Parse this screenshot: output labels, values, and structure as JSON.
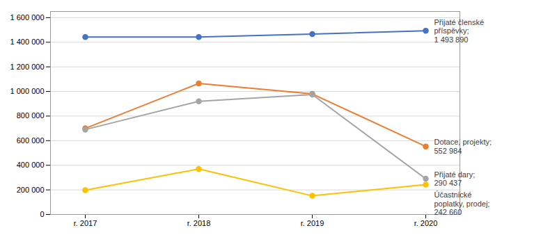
{
  "chart_data": {
    "type": "line",
    "categories": [
      "r. 2017",
      "r. 2018",
      "r. 2019",
      "r. 2020"
    ],
    "series": [
      {
        "name": "Přijaté členské\npříspěvky;\n1 493 890",
        "color": "#4472C4",
        "marker": "circle",
        "values": [
          1443000,
          1443000,
          1466000,
          1493890
        ]
      },
      {
        "name": "Dotace, projekty;\n552 984",
        "color": "#ED7D31",
        "marker": "circle",
        "values": [
          700000,
          1065000,
          980000,
          552984
        ]
      },
      {
        "name": "Přijaté dary;\n290 437",
        "color": "#A5A5A5",
        "marker": "circle",
        "values": [
          690000,
          920000,
          975000,
          290437
        ]
      },
      {
        "name": "Účastnické\npoplatky, prodej;\n242 660",
        "color": "#FFC000",
        "marker": "circle",
        "values": [
          198000,
          370000,
          152000,
          242660
        ]
      }
    ],
    "ylim": [
      0,
      1650000
    ],
    "yticks": [
      0,
      {
        "value": 200000,
        "label": "200 000"
      },
      {
        "value": 400000,
        "label": "400 000"
      },
      {
        "value": 600000,
        "label": "600 000"
      },
      {
        "value": 800000,
        "label": "800 000"
      },
      {
        "value": 1000000,
        "label": "1 000 000"
      },
      {
        "value": 1200000,
        "label": "1 200 000"
      },
      {
        "value": 1400000,
        "label": "1 400 000"
      },
      {
        "value": 1600000,
        "label": "1 600 000"
      }
    ],
    "grid": true
  }
}
